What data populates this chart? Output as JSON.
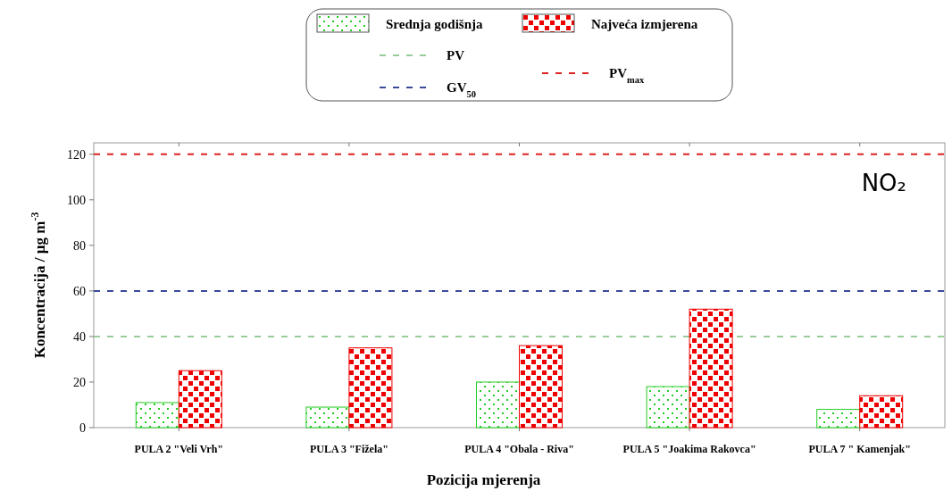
{
  "chart_data": {
    "type": "bar",
    "xlabel": "Pozicija mjerenja",
    "ylabel": "Koncentracija / µg m$^{-3}$",
    "categories": [
      "PULA 2 \"Veli Vrh\"",
      "PULA 3 \"Fižela\"",
      "PULA 4 \"Obala - Riva\"",
      "PULA 5 \"Joakima Rakovca\"",
      "PULA 7 \" Kamenjak\""
    ],
    "series": [
      {
        "name": "Srednja godišnja",
        "color": "#22cc22",
        "values": [
          11,
          9,
          20,
          18,
          8
        ]
      },
      {
        "name": "Najveća izmjerena",
        "color": "#ee0000",
        "values": [
          25,
          35,
          36,
          52,
          14
        ]
      }
    ],
    "ylim": [
      0,
      125
    ],
    "yticks": [
      0,
      20,
      40,
      60,
      80,
      100,
      120
    ],
    "ref_lines": [
      {
        "axis": "y",
        "value": 40,
        "label": "PV",
        "color": "#99cc99",
        "line_style": "dashed"
      },
      {
        "axis": "y",
        "value": 60,
        "label": "GV$_{50}$",
        "color": "#3a4a9a",
        "line_style": "dashed"
      },
      {
        "axis": "y",
        "value": 120,
        "label": "PV$_{max}$",
        "color": "#dd2222",
        "line_style": "dashed"
      }
    ],
    "annotations": [
      "NO₂"
    ],
    "legend": "top",
    "grid": false
  }
}
